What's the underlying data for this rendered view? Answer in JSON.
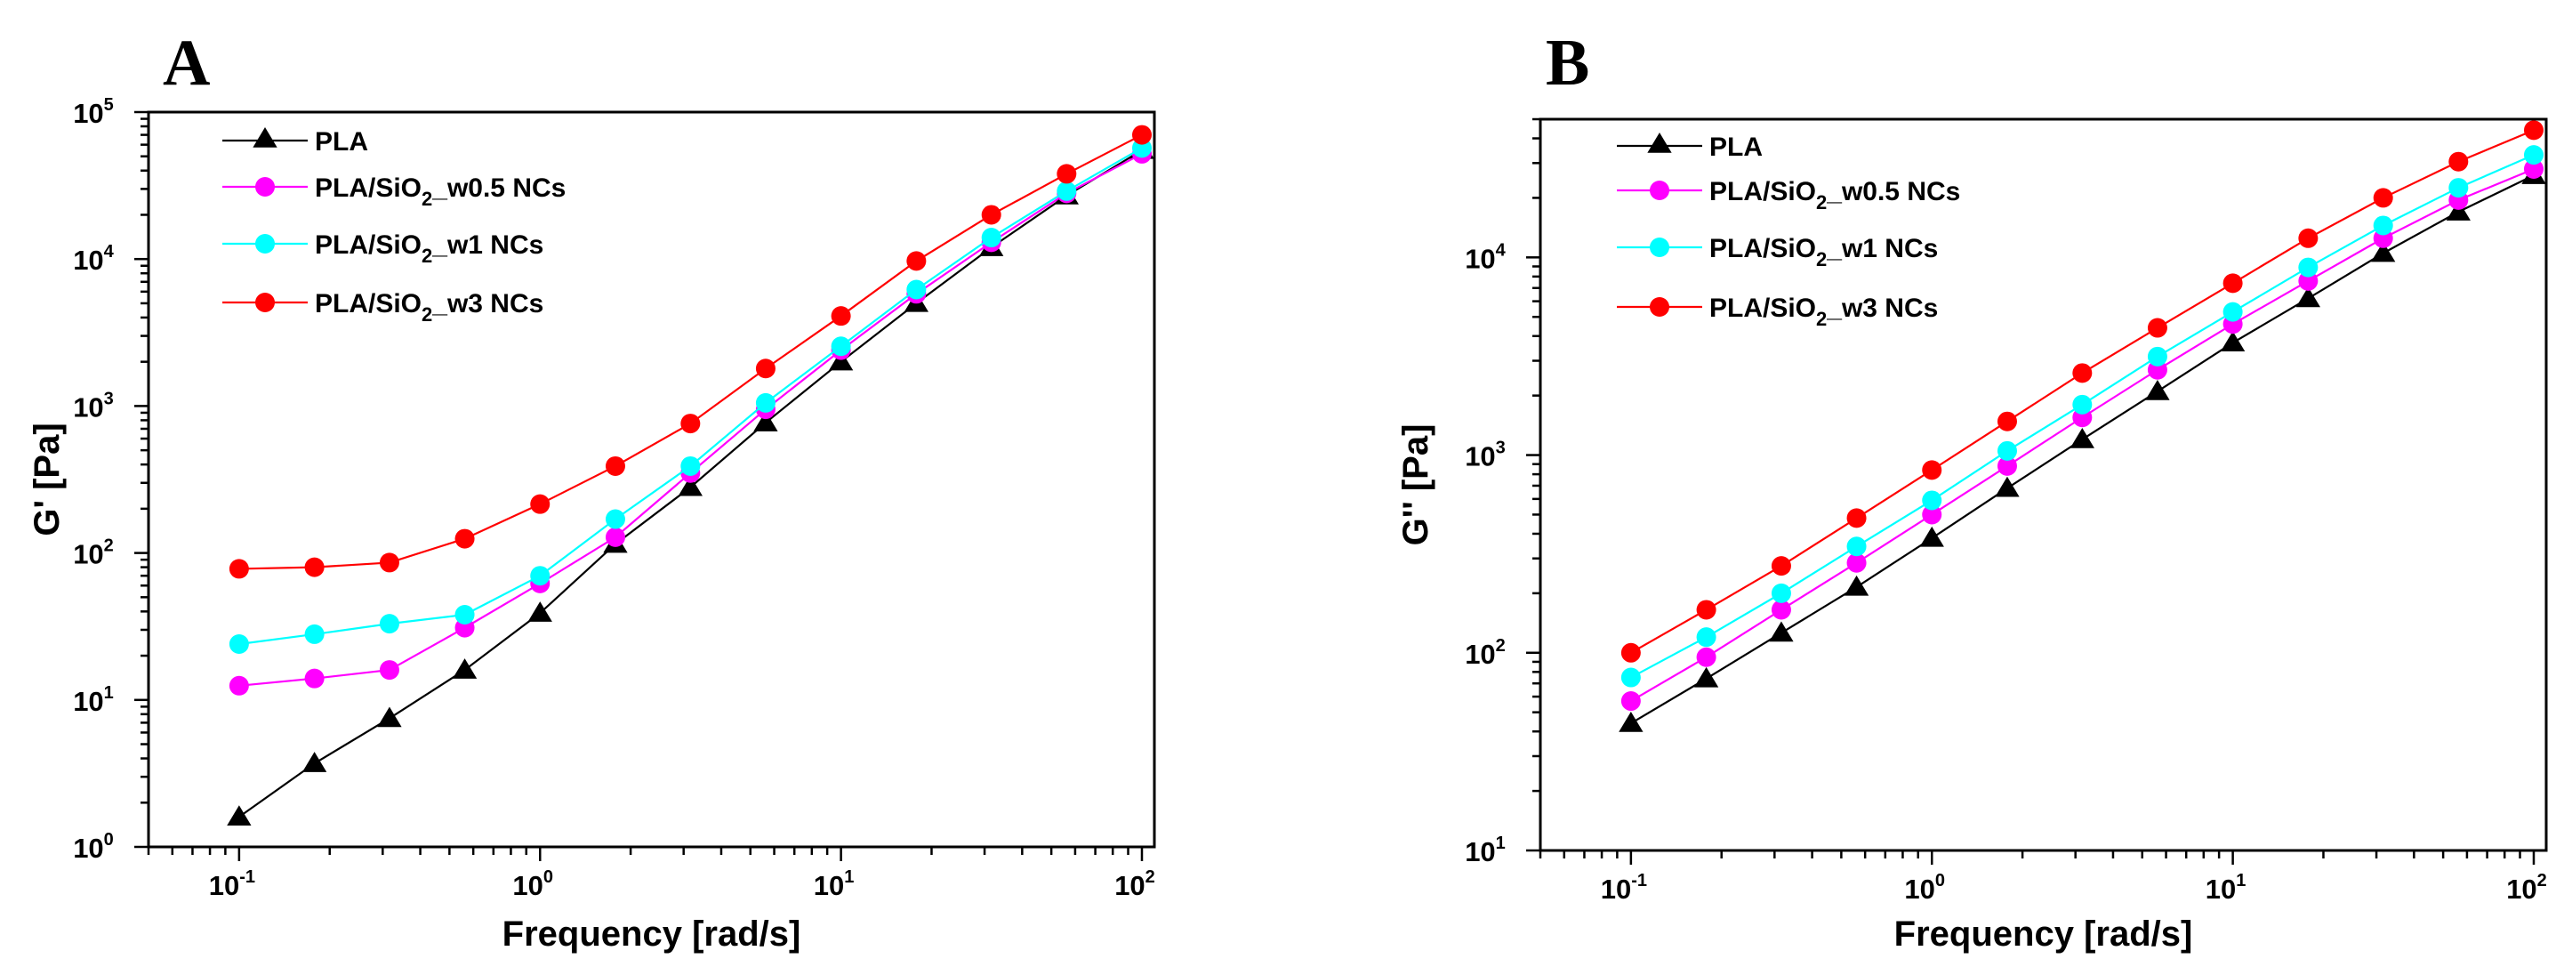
{
  "chart_data": [
    {
      "panel": "A",
      "type": "line",
      "title": "",
      "xlabel": "Frequency [rad/s]",
      "ylabel": "G' [Pa]",
      "xscale": "log",
      "yscale": "log",
      "xlim": [
        0.05,
        110
      ],
      "ylim": [
        1,
        100000
      ],
      "x_tick_labels": [
        {
          "base": "10",
          "exp": "-1",
          "value": 0.1
        },
        {
          "base": "10",
          "exp": "0",
          "value": 1
        },
        {
          "base": "10",
          "exp": "1",
          "value": 10
        },
        {
          "base": "10",
          "exp": "2",
          "value": 100
        }
      ],
      "y_tick_labels": [
        {
          "base": "10",
          "exp": "0",
          "value": 1
        },
        {
          "base": "10",
          "exp": "1",
          "value": 10
        },
        {
          "base": "10",
          "exp": "2",
          "value": 100
        },
        {
          "base": "10",
          "exp": "3",
          "value": 1000
        },
        {
          "base": "10",
          "exp": "4",
          "value": 10000
        },
        {
          "base": "10",
          "exp": "5",
          "value": 100000
        }
      ],
      "legend_position": "top-left",
      "x": [
        0.1,
        0.178,
        0.316,
        0.562,
        1,
        1.78,
        3.16,
        5.62,
        10,
        17.8,
        31.6,
        56.2,
        100
      ],
      "series": [
        {
          "name": "PLA",
          "label_main": "PLA",
          "label_sub": "",
          "label_tail": "",
          "color": "#000000",
          "marker": "triangle",
          "values": [
            1.6,
            3.7,
            7.5,
            16,
            39,
            115,
            280,
            770,
            2000,
            5000,
            12000,
            27000,
            55000
          ]
        },
        {
          "name": "PLA/SiO2_w0.5 NCs",
          "label_main": "PLA/SiO",
          "label_sub": "2",
          "label_tail": "_w0.5 NCs",
          "color": "#ff00ff",
          "marker": "circle",
          "values": [
            12.5,
            14,
            16,
            31,
            62,
            128,
            350,
            950,
            2400,
            5800,
            13000,
            28000,
            52000
          ]
        },
        {
          "name": "PLA/SiO2_w1 NCs",
          "label_main": "PLA/SiO",
          "label_sub": "2",
          "label_tail": "_w1 NCs",
          "color": "#00ffff",
          "marker": "circle",
          "values": [
            24,
            28,
            33,
            38,
            70,
            170,
            390,
            1050,
            2550,
            6200,
            14000,
            29000,
            57000
          ]
        },
        {
          "name": "PLA/SiO2_w3 NCs",
          "label_main": "PLA/SiO",
          "label_sub": "2",
          "label_tail": "_w3 NCs",
          "color": "#ff0000",
          "marker": "circle",
          "values": [
            78,
            80,
            86,
            125,
            215,
            390,
            760,
            1800,
            4100,
            9700,
            20000,
            38000,
            70000
          ]
        }
      ]
    },
    {
      "panel": "B",
      "type": "line",
      "title": "",
      "xlabel": "Frequency [rad/s]",
      "ylabel": "G'' [Pa]",
      "xscale": "log",
      "yscale": "log",
      "xlim": [
        0.05,
        110
      ],
      "ylim": [
        10,
        50000
      ],
      "x_tick_labels": [
        {
          "base": "10",
          "exp": "-1",
          "value": 0.1
        },
        {
          "base": "10",
          "exp": "0",
          "value": 1
        },
        {
          "base": "10",
          "exp": "1",
          "value": 10
        },
        {
          "base": "10",
          "exp": "2",
          "value": 100
        }
      ],
      "y_tick_labels": [
        {
          "base": "10",
          "exp": "1",
          "value": 10
        },
        {
          "base": "10",
          "exp": "2",
          "value": 100
        },
        {
          "base": "10",
          "exp": "3",
          "value": 1000
        },
        {
          "base": "10",
          "exp": "4",
          "value": 10000
        }
      ],
      "legend_position": "top-left",
      "x": [
        0.1,
        0.178,
        0.316,
        0.562,
        1,
        1.78,
        3.16,
        5.62,
        10,
        17.8,
        31.6,
        56.2,
        100
      ],
      "series": [
        {
          "name": "PLA",
          "label_main": "PLA",
          "label_sub": "",
          "label_tail": "",
          "color": "#000000",
          "marker": "triangle",
          "values": [
            44,
            74,
            126,
            215,
            380,
            680,
            1200,
            2100,
            3700,
            6200,
            10500,
            17000,
            26000
          ]
        },
        {
          "name": "PLA/SiO2_w0.5 NCs",
          "label_main": "PLA/SiO",
          "label_sub": "2",
          "label_tail": "_w0.5 NCs",
          "color": "#ff00ff",
          "marker": "circle",
          "values": [
            57,
            95,
            165,
            285,
            500,
            880,
            1550,
            2700,
            4600,
            7600,
            12500,
            19500,
            28000
          ]
        },
        {
          "name": "PLA/SiO2_w1 NCs",
          "label_main": "PLA/SiO",
          "label_sub": "2",
          "label_tail": "_w1 NCs",
          "color": "#00ffff",
          "marker": "circle",
          "values": [
            75,
            120,
            200,
            345,
            590,
            1050,
            1800,
            3150,
            5300,
            8900,
            14500,
            22500,
            33000
          ]
        },
        {
          "name": "PLA/SiO2_w3 NCs",
          "label_main": "PLA/SiO",
          "label_sub": "2",
          "label_tail": "_w3 NCs",
          "color": "#ff0000",
          "marker": "circle",
          "values": [
            100,
            165,
            275,
            480,
            840,
            1480,
            2600,
            4400,
            7400,
            12500,
            20000,
            30500,
            44000
          ]
        }
      ]
    }
  ]
}
